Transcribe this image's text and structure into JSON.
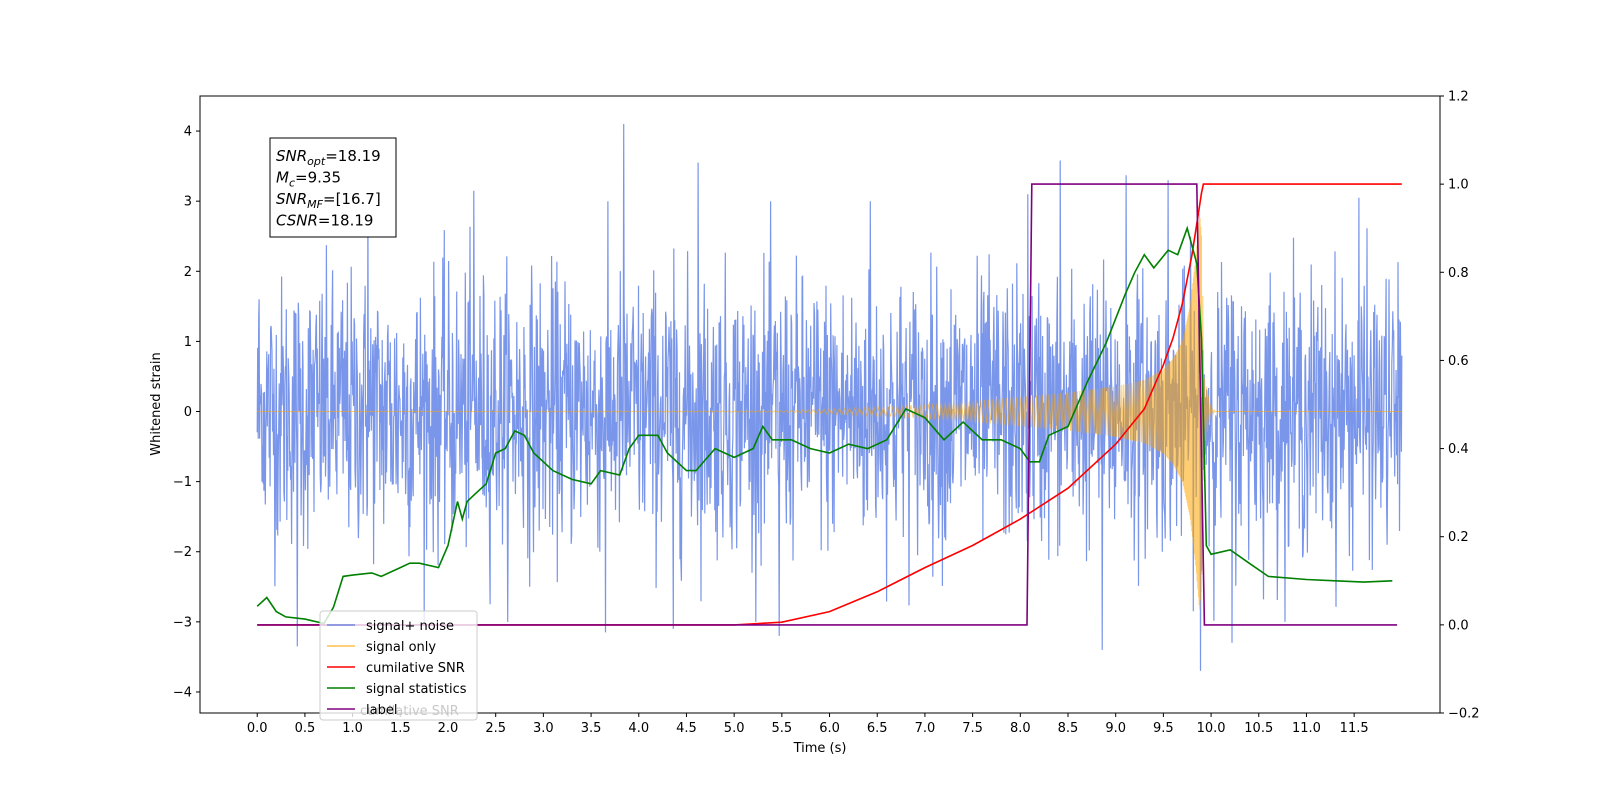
{
  "chart_data": {
    "type": "line",
    "title": "",
    "xlabel": "Time (s)",
    "ylabel": "Whitened strain",
    "ylabel_right": "",
    "xlim": [
      -0.6,
      12.4
    ],
    "ylim": [
      -4.3,
      4.5
    ],
    "ylim_right": [
      -0.2,
      1.2
    ],
    "x_ticks": [
      0.0,
      0.5,
      1.0,
      1.5,
      2.0,
      2.5,
      3.0,
      3.5,
      4.0,
      4.5,
      5.0,
      5.5,
      6.0,
      6.5,
      7.0,
      7.5,
      8.0,
      8.5,
      9.0,
      9.5,
      10.0,
      10.5,
      11.0,
      11.5
    ],
    "x_tick_labels": [
      "0.0",
      "0.5",
      "1.0",
      "1.5",
      "2.0",
      "2.5",
      "3.0",
      "3.5",
      "4.0",
      "4.5",
      "5.0",
      "5.5",
      "6.0",
      "6.5",
      "7.0",
      "7.5",
      "8.0",
      "8.5",
      "9.0",
      "9.5",
      "10.0",
      "10.5",
      "11.0",
      "11.5"
    ],
    "y_ticks": [
      -4,
      -3,
      -2,
      -1,
      0,
      1,
      2,
      3,
      4
    ],
    "y_tick_labels": [
      "−4",
      "−3",
      "−2",
      "−1",
      "0",
      "1",
      "2",
      "3",
      "4"
    ],
    "y_ticks_right": [
      -0.2,
      0.0,
      0.2,
      0.4,
      0.6,
      0.8,
      1.0,
      1.2
    ],
    "y_tick_labels_right": [
      "−0.2",
      "0.0",
      "0.2",
      "0.4",
      "0.6",
      "0.8",
      "1.0",
      "1.2"
    ],
    "grid": false,
    "legend_position": "lower-left",
    "annotation": {
      "lines": [
        {
          "sym": "SNR",
          "sub": "opt",
          "value": "=18.19"
        },
        {
          "sym": "M",
          "sub": "c",
          "value": "=9.35"
        },
        {
          "sym": "SNR",
          "sub": "MF",
          "value": "=[16.7]"
        },
        {
          "sym": "CSNR",
          "sub": "",
          "value": "=18.19"
        }
      ]
    },
    "series": [
      {
        "name": "signal+ noise",
        "axis": "left",
        "color": "#4169e1",
        "kind": "noise",
        "x_range": [
          0.0,
          12.0
        ],
        "std": 0.95,
        "spikes": [
          [
            0.02,
            1.6
          ],
          [
            0.05,
            -1.0
          ],
          [
            0.42,
            -3.35
          ],
          [
            3.84,
            4.1
          ],
          [
            4.62,
            3.55
          ],
          [
            5.47,
            -3.2
          ],
          [
            8.42,
            3.58
          ],
          [
            8.86,
            -3.4
          ],
          [
            9.11,
            3.37
          ],
          [
            9.89,
            -3.7
          ],
          [
            10.22,
            -3.3
          ],
          [
            3.65,
            -3.15
          ],
          [
            4.36,
            -3.1
          ],
          [
            1.16,
            3.1
          ],
          [
            2.27,
            3.15
          ],
          [
            6.43,
            3.0
          ],
          [
            9.55,
            3.3
          ],
          [
            11.55,
            3.05
          ],
          [
            8.08,
            3.1
          ]
        ]
      },
      {
        "name": "signal only",
        "axis": "left",
        "color": "#ffa500",
        "kind": "chirp",
        "x_range": [
          0.0,
          12.0
        ],
        "envelope": [
          [
            0.0,
            0.0
          ],
          [
            5.5,
            0.01
          ],
          [
            6.5,
            0.06
          ],
          [
            7.5,
            0.15
          ],
          [
            8.5,
            0.27
          ],
          [
            9.0,
            0.36
          ],
          [
            9.3,
            0.45
          ],
          [
            9.5,
            0.6
          ],
          [
            9.6,
            0.75
          ],
          [
            9.7,
            1.0
          ],
          [
            9.78,
            1.5
          ],
          [
            9.84,
            2.2
          ],
          [
            9.88,
            2.85
          ],
          [
            9.9,
            2.5
          ],
          [
            9.93,
            0.5
          ],
          [
            10.0,
            0.05
          ],
          [
            10.05,
            0.0
          ],
          [
            12.0,
            0.0
          ]
        ]
      },
      {
        "name": "cumilative SNR",
        "axis": "right",
        "color": "#ff0000",
        "x": [
          0.0,
          5.0,
          5.5,
          6.0,
          6.5,
          7.0,
          7.5,
          8.0,
          8.5,
          9.0,
          9.3,
          9.5,
          9.6,
          9.7,
          9.8,
          9.85,
          9.9,
          9.92,
          12.0
        ],
        "y": [
          0.0,
          0.0,
          0.006,
          0.03,
          0.075,
          0.13,
          0.18,
          0.24,
          0.31,
          0.41,
          0.49,
          0.59,
          0.65,
          0.73,
          0.84,
          0.91,
          0.98,
          1.0,
          1.0
        ]
      },
      {
        "name": "signal statistics",
        "axis": "right",
        "color": "#008000",
        "x": [
          0.0,
          0.1,
          0.2,
          0.3,
          0.5,
          0.7,
          0.8,
          0.9,
          1.0,
          1.2,
          1.3,
          1.5,
          1.6,
          1.7,
          1.9,
          2.0,
          2.1,
          2.15,
          2.2,
          2.3,
          2.4,
          2.5,
          2.6,
          2.7,
          2.8,
          2.9,
          3.1,
          3.3,
          3.5,
          3.6,
          3.8,
          3.9,
          4.0,
          4.2,
          4.3,
          4.5,
          4.6,
          4.8,
          5.0,
          5.2,
          5.3,
          5.4,
          5.6,
          5.8,
          6.0,
          6.2,
          6.4,
          6.6,
          6.8,
          7.0,
          7.2,
          7.4,
          7.6,
          7.8,
          8.0,
          8.1,
          8.2,
          8.3,
          8.5,
          8.7,
          8.9,
          9.1,
          9.2,
          9.3,
          9.4,
          9.55,
          9.65,
          9.75,
          9.85,
          9.9,
          9.95,
          10.0,
          10.2,
          10.4,
          10.6,
          11.0,
          11.3,
          11.6,
          11.9
        ],
        "y": [
          0.042,
          0.062,
          0.03,
          0.018,
          0.013,
          0.003,
          0.04,
          0.11,
          0.113,
          0.118,
          0.11,
          0.13,
          0.14,
          0.14,
          0.13,
          0.18,
          0.28,
          0.24,
          0.28,
          0.3,
          0.32,
          0.39,
          0.4,
          0.44,
          0.43,
          0.39,
          0.35,
          0.33,
          0.32,
          0.35,
          0.34,
          0.4,
          0.43,
          0.43,
          0.39,
          0.35,
          0.35,
          0.4,
          0.38,
          0.4,
          0.45,
          0.42,
          0.42,
          0.4,
          0.39,
          0.41,
          0.4,
          0.42,
          0.49,
          0.47,
          0.42,
          0.46,
          0.42,
          0.42,
          0.4,
          0.37,
          0.37,
          0.43,
          0.45,
          0.55,
          0.64,
          0.75,
          0.8,
          0.84,
          0.81,
          0.85,
          0.84,
          0.9,
          0.82,
          0.65,
          0.18,
          0.16,
          0.17,
          0.14,
          0.11,
          0.103,
          0.1,
          0.097,
          0.1
        ]
      },
      {
        "name": "label",
        "axis": "right",
        "color": "#800080",
        "x": [
          0.0,
          8.07,
          8.12,
          9.85,
          9.93,
          11.95
        ],
        "y": [
          0.0,
          0.0,
          1.0,
          1.0,
          0.0,
          0.0
        ]
      }
    ],
    "legend_ghost_text": "cumilative SNR"
  }
}
